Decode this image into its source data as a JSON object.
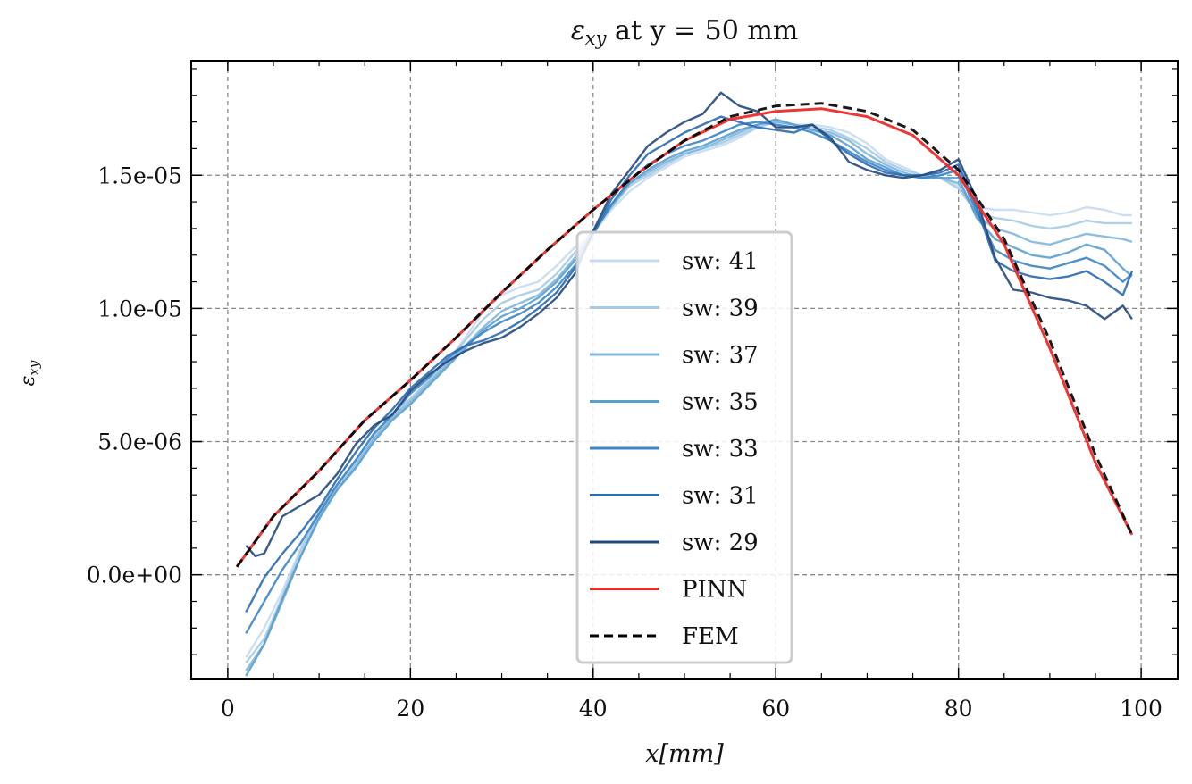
{
  "chart_data": {
    "type": "line",
    "title": "εxy at y = 50 mm",
    "xlabel": "x[mm]",
    "ylabel": "εxy",
    "xlim": [
      -4,
      104
    ],
    "ylim": [
      -3.9e-06,
      1.93e-05
    ],
    "xticks": [
      0,
      20,
      40,
      60,
      80,
      100
    ],
    "xtick_labels": [
      "0",
      "20",
      "40",
      "60",
      "80",
      "100"
    ],
    "yticks": [
      0,
      5e-06,
      1e-05,
      1.5e-05
    ],
    "ytick_labels": [
      "0.0e+00",
      "5.0e-06",
      "1.0e-05",
      "1.5e-05"
    ],
    "grid": true,
    "legend_position": "center",
    "series": [
      {
        "name": "sw:  41",
        "color": "#c6dbef",
        "dash": "solid",
        "x": [
          2,
          4,
          6,
          8,
          10,
          12,
          14,
          16,
          18,
          20,
          22,
          24,
          26,
          28,
          30,
          32,
          34,
          36,
          38,
          40,
          42,
          44,
          46,
          48,
          50,
          52,
          54,
          56,
          58,
          60,
          62,
          64,
          66,
          68,
          70,
          72,
          74,
          76,
          78,
          80,
          82,
          84,
          86,
          88,
          90,
          92,
          94,
          96,
          98,
          99
        ],
        "y": [
          -3.1e-06,
          -2e-06,
          -6e-07,
          1e-06,
          2.5e-06,
          3.4e-06,
          4.3e-06,
          5.2e-06,
          6.1e-06,
          6.6e-06,
          7.3e-06,
          8e-06,
          8.9e-06,
          9.9e-06,
          1.05e-05,
          1.08e-05,
          1.1e-05,
          1.16e-05,
          1.23e-05,
          1.28e-05,
          1.37e-05,
          1.44e-05,
          1.49e-05,
          1.53e-05,
          1.57e-05,
          1.59e-05,
          1.61e-05,
          1.64e-05,
          1.68e-05,
          1.7e-05,
          1.69e-05,
          1.69e-05,
          1.68e-05,
          1.66e-05,
          1.62e-05,
          1.56e-05,
          1.53e-05,
          1.5e-05,
          1.49e-05,
          1.46e-05,
          1.38e-05,
          1.37e-05,
          1.37e-05,
          1.36e-05,
          1.35e-05,
          1.36e-05,
          1.38e-05,
          1.37e-05,
          1.35e-05,
          1.35e-05
        ]
      },
      {
        "name": "sw:  39",
        "color": "#a6cbe4",
        "dash": "solid",
        "x": [
          2,
          4,
          6,
          8,
          10,
          12,
          14,
          16,
          18,
          20,
          22,
          24,
          26,
          28,
          30,
          32,
          34,
          36,
          38,
          40,
          42,
          44,
          46,
          48,
          50,
          52,
          54,
          56,
          58,
          60,
          62,
          64,
          66,
          68,
          70,
          72,
          74,
          76,
          78,
          80,
          82,
          84,
          86,
          88,
          90,
          92,
          94,
          96,
          98,
          99
        ],
        "y": [
          -3.3e-06,
          -2.4e-06,
          -8e-07,
          9e-07,
          2.4e-06,
          3.3e-06,
          4.2e-06,
          5.2e-06,
          6e-06,
          6.6e-06,
          7.3e-06,
          8e-06,
          8.8e-06,
          9.6e-06,
          1.02e-05,
          1.05e-05,
          1.07e-05,
          1.13e-05,
          1.21e-05,
          1.29e-05,
          1.38e-05,
          1.46e-05,
          1.5e-05,
          1.54e-05,
          1.58e-05,
          1.6e-05,
          1.62e-05,
          1.65e-05,
          1.68e-05,
          1.7e-05,
          1.69e-05,
          1.68e-05,
          1.67e-05,
          1.64e-05,
          1.6e-05,
          1.55e-05,
          1.52e-05,
          1.5e-05,
          1.49e-05,
          1.45e-05,
          1.36e-05,
          1.34e-05,
          1.33e-05,
          1.31e-05,
          1.3e-05,
          1.31e-05,
          1.33e-05,
          1.32e-05,
          1.32e-05,
          1.32e-05
        ]
      },
      {
        "name": "sw:  37",
        "color": "#82b7dc",
        "dash": "solid",
        "x": [
          2,
          4,
          6,
          8,
          10,
          12,
          14,
          16,
          18,
          20,
          22,
          24,
          26,
          28,
          30,
          32,
          34,
          36,
          38,
          40,
          42,
          44,
          46,
          48,
          50,
          52,
          54,
          56,
          58,
          60,
          62,
          64,
          66,
          68,
          70,
          72,
          74,
          76,
          78,
          80,
          82,
          84,
          86,
          88,
          90,
          92,
          94,
          96,
          98,
          99
        ],
        "y": [
          -3.6e-06,
          -2.6e-06,
          -1e-06,
          7e-07,
          2.2e-06,
          3.2e-06,
          4.1e-06,
          5.1e-06,
          5.9e-06,
          6.5e-06,
          7.2e-06,
          7.9e-06,
          8.6e-06,
          9.3e-06,
          9.9e-06,
          1.02e-05,
          1.05e-05,
          1.11e-05,
          1.19e-05,
          1.29e-05,
          1.38e-05,
          1.47e-05,
          1.51e-05,
          1.55e-05,
          1.58e-05,
          1.6e-05,
          1.63e-05,
          1.66e-05,
          1.69e-05,
          1.7e-05,
          1.69e-05,
          1.67e-05,
          1.66e-05,
          1.63e-05,
          1.58e-05,
          1.54e-05,
          1.51e-05,
          1.49e-05,
          1.49e-05,
          1.47e-05,
          1.35e-05,
          1.3e-05,
          1.28e-05,
          1.25e-05,
          1.24e-05,
          1.26e-05,
          1.28e-05,
          1.27e-05,
          1.26e-05,
          1.25e-05
        ]
      },
      {
        "name": "sw:  35",
        "color": "#5ba0d0",
        "dash": "solid",
        "x": [
          2,
          4,
          6,
          8,
          10,
          12,
          14,
          16,
          18,
          20,
          22,
          24,
          26,
          28,
          30,
          32,
          34,
          36,
          38,
          40,
          42,
          44,
          46,
          48,
          50,
          52,
          54,
          56,
          58,
          60,
          62,
          64,
          66,
          68,
          70,
          72,
          74,
          76,
          78,
          80,
          82,
          84,
          86,
          88,
          90,
          92,
          94,
          96,
          98,
          99
        ],
        "y": [
          -3.8e-06,
          -2.6e-06,
          -9e-07,
          7e-07,
          2.1e-06,
          3.2e-06,
          4e-06,
          5e-06,
          5.8e-06,
          6.4e-06,
          7.1e-06,
          7.8e-06,
          8.5e-06,
          9.2e-06,
          9.7e-06,
          1e-05,
          1.04e-05,
          1.1e-05,
          1.18e-05,
          1.29e-05,
          1.39e-05,
          1.47e-05,
          1.52e-05,
          1.56e-05,
          1.59e-05,
          1.61e-05,
          1.64e-05,
          1.67e-05,
          1.69e-05,
          1.71e-05,
          1.69e-05,
          1.67e-05,
          1.65e-05,
          1.61e-05,
          1.56e-05,
          1.53e-05,
          1.5e-05,
          1.49e-05,
          1.49e-05,
          1.49e-05,
          1.34e-05,
          1.26e-05,
          1.23e-05,
          1.2e-05,
          1.19e-05,
          1.21e-05,
          1.24e-05,
          1.22e-05,
          1.15e-05,
          1.12e-05
        ]
      },
      {
        "name": "sw:  33",
        "color": "#3d85c6",
        "dash": "solid",
        "x": [
          2,
          4,
          6,
          8,
          10,
          12,
          14,
          16,
          18,
          20,
          22,
          24,
          26,
          28,
          30,
          32,
          34,
          36,
          38,
          40,
          42,
          44,
          46,
          48,
          50,
          52,
          54,
          56,
          58,
          60,
          62,
          64,
          66,
          68,
          70,
          72,
          74,
          76,
          78,
          80,
          82,
          84,
          86,
          88,
          90,
          92,
          94,
          96,
          98,
          99
        ],
        "y": [
          -2.2e-06,
          -1e-06,
          2e-07,
          1.2e-06,
          2.3e-06,
          3.4e-06,
          4.3e-06,
          5.3e-06,
          6e-06,
          6.8e-06,
          7.4e-06,
          8.1e-06,
          8.6e-06,
          9.1e-06,
          9.5e-06,
          9.8e-06,
          1.02e-05,
          1.08e-05,
          1.16e-05,
          1.28e-05,
          1.39e-05,
          1.48e-05,
          1.54e-05,
          1.58e-05,
          1.61e-05,
          1.63e-05,
          1.66e-05,
          1.69e-05,
          1.7e-05,
          1.69e-05,
          1.68e-05,
          1.66e-05,
          1.63e-05,
          1.59e-05,
          1.55e-05,
          1.52e-05,
          1.5e-05,
          1.49e-05,
          1.5e-05,
          1.52e-05,
          1.36e-05,
          1.22e-05,
          1.18e-05,
          1.16e-05,
          1.15e-05,
          1.17e-05,
          1.19e-05,
          1.16e-05,
          1.1e-05,
          1.13e-05
        ]
      },
      {
        "name": "sw:  31",
        "color": "#2c6bb0",
        "dash": "solid",
        "x": [
          2,
          4,
          6,
          8,
          10,
          12,
          14,
          16,
          18,
          20,
          22,
          24,
          26,
          28,
          30,
          32,
          34,
          36,
          38,
          40,
          42,
          44,
          46,
          48,
          50,
          52,
          54,
          56,
          58,
          60,
          62,
          64,
          66,
          68,
          70,
          72,
          74,
          76,
          78,
          80,
          82,
          84,
          86,
          88,
          90,
          92,
          94,
          96,
          98,
          99
        ],
        "y": [
          -1.4e-06,
          -1e-07,
          8e-07,
          1.6e-06,
          2.5e-06,
          3.6e-06,
          4.6e-06,
          5.5e-06,
          6.2e-06,
          7e-06,
          7.6e-06,
          8.2e-06,
          8.6e-06,
          8.8e-06,
          9.1e-06,
          9.5e-06,
          1e-05,
          1.06e-05,
          1.15e-05,
          1.28e-05,
          1.41e-05,
          1.5e-05,
          1.58e-05,
          1.62e-05,
          1.66e-05,
          1.69e-05,
          1.72e-05,
          1.7e-05,
          1.68e-05,
          1.67e-05,
          1.66e-05,
          1.69e-05,
          1.63e-05,
          1.58e-05,
          1.54e-05,
          1.51e-05,
          1.5e-05,
          1.5e-05,
          1.51e-05,
          1.54e-05,
          1.38e-05,
          1.18e-05,
          1.14e-05,
          1.12e-05,
          1.11e-05,
          1.12e-05,
          1.14e-05,
          1.1e-05,
          1.05e-05,
          1.14e-05
        ]
      },
      {
        "name": "sw:  29",
        "color": "#22497e",
        "dash": "solid",
        "x": [
          2,
          3,
          4,
          6,
          8,
          10,
          12,
          14,
          16,
          18,
          20,
          22,
          24,
          26,
          28,
          30,
          32,
          34,
          36,
          38,
          40,
          42,
          44,
          46,
          48,
          50,
          52,
          54,
          56,
          58,
          60,
          62,
          64,
          66,
          68,
          70,
          72,
          74,
          76,
          78,
          80,
          82,
          84,
          86,
          88,
          90,
          92,
          94,
          96,
          98,
          99
        ],
        "y": [
          1.1e-06,
          7e-07,
          8e-07,
          2.2e-06,
          2.6e-06,
          3e-06,
          3.8e-06,
          4.9e-06,
          5.6e-06,
          6e-06,
          6.9e-06,
          7.5e-06,
          8e-06,
          8.4e-06,
          8.7e-06,
          8.9e-06,
          9.3e-06,
          9.8e-06,
          1.04e-05,
          1.13e-05,
          1.29e-05,
          1.43e-05,
          1.52e-05,
          1.61e-05,
          1.66e-05,
          1.7e-05,
          1.73e-05,
          1.81e-05,
          1.76e-05,
          1.74e-05,
          1.68e-05,
          1.68e-05,
          1.69e-05,
          1.64e-05,
          1.55e-05,
          1.52e-05,
          1.5e-05,
          1.49e-05,
          1.5e-05,
          1.52e-05,
          1.56e-05,
          1.41e-05,
          1.19e-05,
          1.07e-05,
          1.06e-05,
          1.04e-05,
          1.03e-05,
          1.01e-05,
          9.6e-06,
          1.01e-05,
          9.6e-06
        ]
      },
      {
        "name": "PINN",
        "color": "#ee2b2b",
        "dash": "solid",
        "x": [
          1,
          5,
          10,
          15,
          20,
          25,
          30,
          35,
          40,
          45,
          50,
          55,
          60,
          65,
          70,
          75,
          80,
          85,
          90,
          95,
          99
        ],
        "y": [
          3e-07,
          2.2e-06,
          3.9e-06,
          5.8e-06,
          7.3e-06,
          8.9e-06,
          1.06e-05,
          1.22e-05,
          1.37e-05,
          1.51e-05,
          1.63e-05,
          1.71e-05,
          1.74e-05,
          1.75e-05,
          1.72e-05,
          1.65e-05,
          1.5e-05,
          1.24e-05,
          8.5e-06,
          4.2e-06,
          1.5e-06
        ]
      },
      {
        "name": "FEM",
        "color": "#000000",
        "dash": "dashed",
        "x": [
          1,
          5,
          10,
          15,
          20,
          25,
          30,
          35,
          40,
          45,
          50,
          55,
          60,
          65,
          70,
          75,
          80,
          85,
          90,
          95,
          99
        ],
        "y": [
          3e-07,
          2.2e-06,
          3.9e-06,
          5.8e-06,
          7.3e-06,
          8.9e-06,
          1.06e-05,
          1.22e-05,
          1.37e-05,
          1.51e-05,
          1.63e-05,
          1.72e-05,
          1.76e-05,
          1.77e-05,
          1.74e-05,
          1.67e-05,
          1.52e-05,
          1.26e-05,
          8.8e-06,
          4.5e-06,
          1.5e-06
        ]
      }
    ]
  }
}
